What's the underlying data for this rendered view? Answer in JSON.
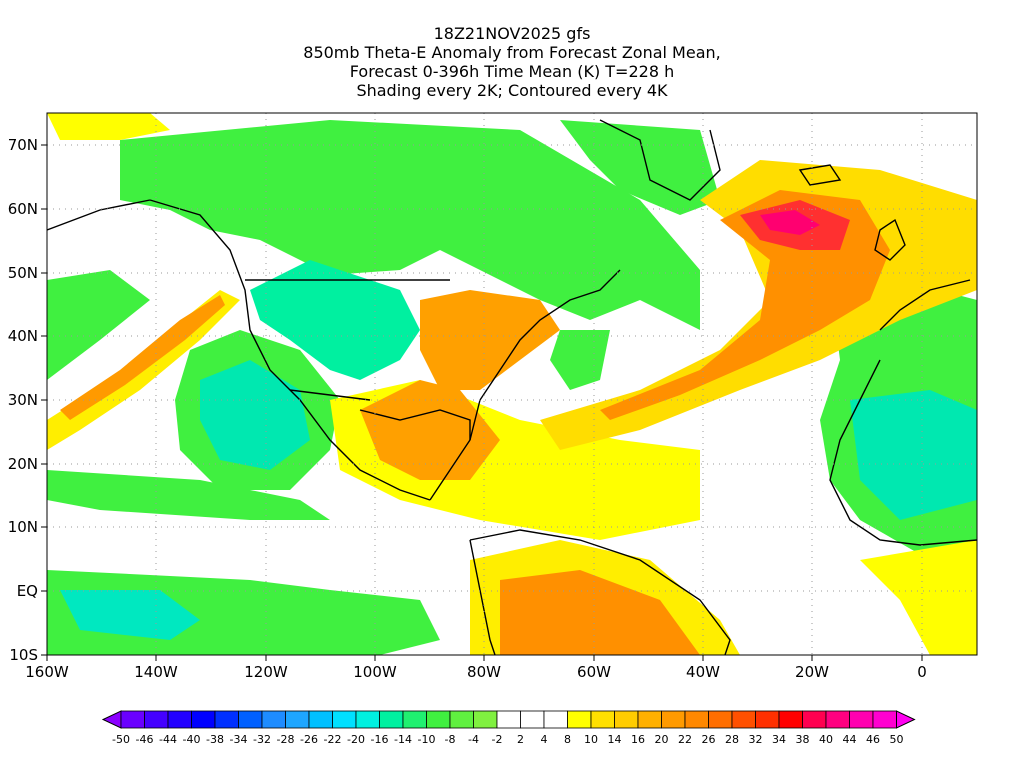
{
  "title": {
    "line1": "18Z21NOV2025 gfs",
    "line2": "850mb Theta-E Anomaly from Forecast Zonal Mean,",
    "line3": "Forecast 0-396h Time Mean (K) T=228 h",
    "line4": "Shading every 2K; Contoured every 4K"
  },
  "map": {
    "lat_labels": [
      "70N",
      "60N",
      "50N",
      "40N",
      "30N",
      "20N",
      "10N",
      "EQ",
      "10S"
    ],
    "lon_labels": [
      "160W",
      "140W",
      "120W",
      "100W",
      "80W",
      "60W",
      "40W",
      "20W",
      "0"
    ],
    "lon_range": [
      -160,
      10
    ],
    "lat_range": [
      -10,
      75
    ]
  },
  "colorbar": {
    "labels": [
      "-50",
      "-46",
      "-44",
      "-40",
      "-38",
      "-34",
      "-32",
      "-28",
      "-26",
      "-22",
      "-20",
      "-16",
      "-14",
      "-10",
      "-8",
      "-4",
      "-2",
      "2",
      "4",
      "8",
      "10",
      "14",
      "16",
      "20",
      "22",
      "26",
      "28",
      "32",
      "34",
      "38",
      "40",
      "44",
      "46",
      "50"
    ],
    "colors": [
      "#8b00ff",
      "#6a00ff",
      "#4400ff",
      "#2200ff",
      "#0000ff",
      "#0030ff",
      "#0060ff",
      "#1e8cff",
      "#1ea6ff",
      "#00c0ff",
      "#00e0ff",
      "#00f0e0",
      "#00f0a0",
      "#20f070",
      "#40f040",
      "#60f040",
      "#80f040",
      "#ffffff",
      "#ffffff",
      "#ffffff",
      "#ffff00",
      "#ffe000",
      "#ffcc00",
      "#ffb000",
      "#ff9a00",
      "#ff8800",
      "#ff6e00",
      "#ff5000",
      "#ff3000",
      "#ff0000",
      "#ff0050",
      "#ff0080",
      "#ff00b0",
      "#ff00d0",
      "#ff00f0"
    ]
  },
  "colors": {
    "green": "#40f040",
    "teal": "#00f0a0",
    "yellow": "#ffff00",
    "orange": "#ffa000",
    "red": "#ff2040",
    "magenta": "#ff0070"
  }
}
